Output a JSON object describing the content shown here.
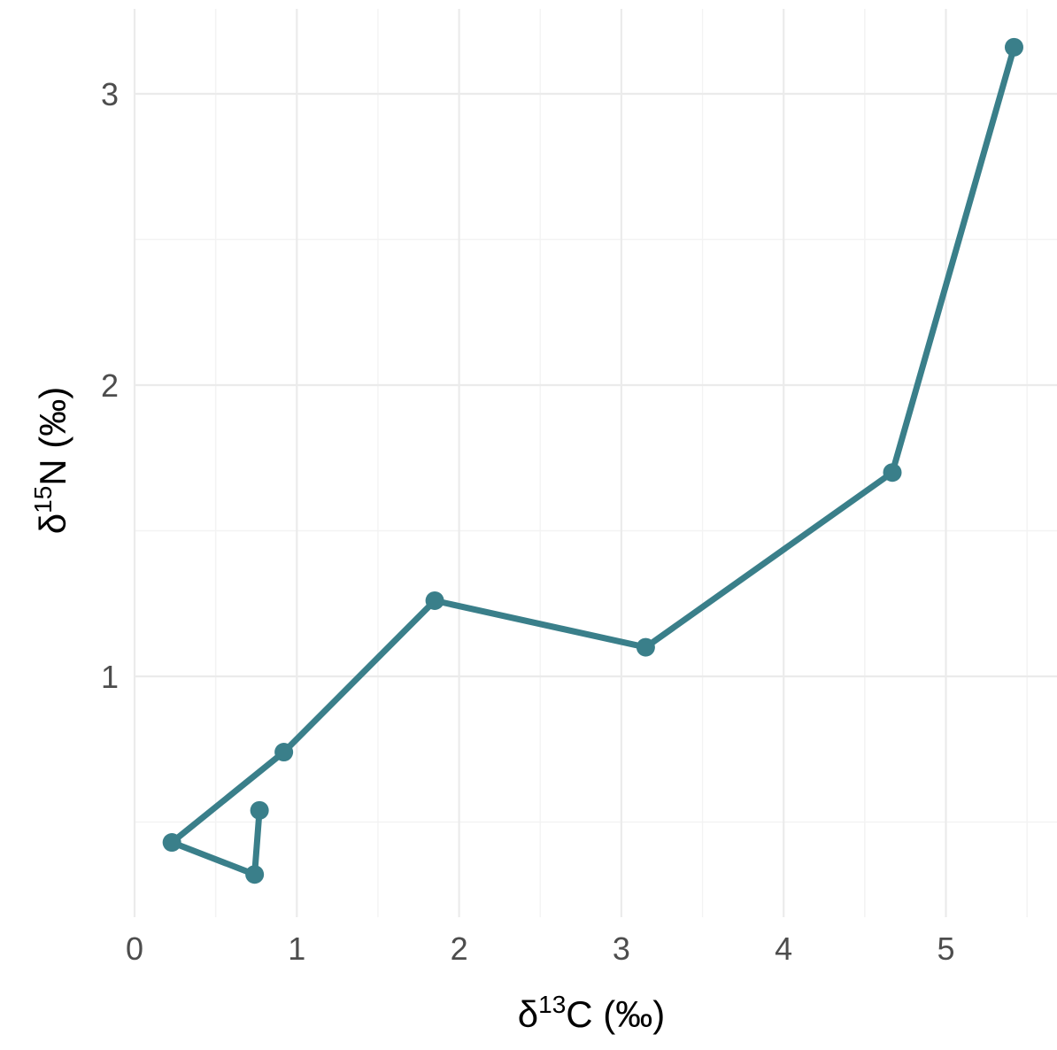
{
  "chart_data": {
    "type": "line",
    "xlabel": {
      "prefix": "δ",
      "sup": "13",
      "suffix": "C (‰)"
    },
    "ylabel": {
      "prefix": "δ",
      "sup": "15",
      "suffix": "N (‰)"
    },
    "xlim": [
      0,
      5.5
    ],
    "ylim": [
      0.23,
      3.3
    ],
    "x_ticks": [
      0,
      1,
      2,
      3,
      4,
      5
    ],
    "x_tick_labels": [
      "0",
      "1",
      "2",
      "3",
      "4",
      "5"
    ],
    "x_minor_ticks": [
      0.5,
      1.5,
      2.5,
      3.5,
      4.5,
      5.5
    ],
    "y_ticks": [
      1,
      2,
      3
    ],
    "y_tick_labels": [
      "1",
      "2",
      "3"
    ],
    "y_minor_ticks": [
      0.5,
      1.5,
      2.5
    ],
    "grid": true,
    "legend": "none",
    "color": "#3a7f8a",
    "series": [
      {
        "points": [
          {
            "x": 0.77,
            "y": 0.54
          },
          {
            "x": 0.74,
            "y": 0.32
          },
          {
            "x": 0.23,
            "y": 0.43
          },
          {
            "x": 0.92,
            "y": 0.74
          },
          {
            "x": 1.85,
            "y": 1.26
          },
          {
            "x": 3.15,
            "y": 1.1
          },
          {
            "x": 4.67,
            "y": 1.7
          },
          {
            "x": 5.42,
            "y": 3.16
          }
        ]
      }
    ]
  }
}
